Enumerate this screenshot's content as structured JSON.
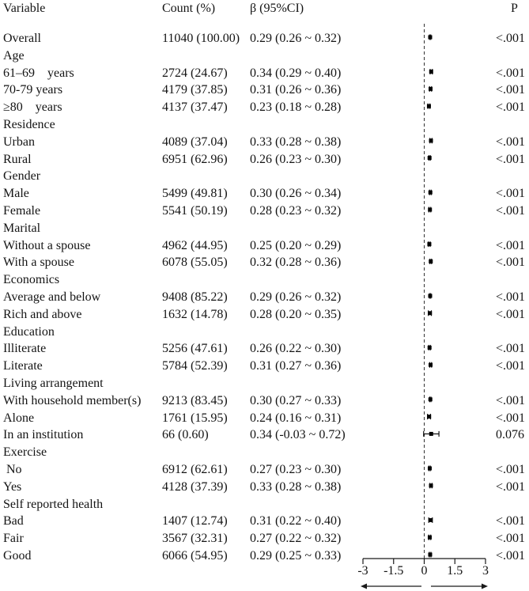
{
  "header": {
    "variable": "Variable",
    "count": "Count (%)",
    "beta": "β (95%CI)",
    "p": "P"
  },
  "colors": {
    "text": "#141414",
    "marker": "#000000",
    "axis": "#1a1a1a",
    "reference_line": "#333333",
    "background": "#ffffff"
  },
  "chart_data": {
    "type": "scatter",
    "subtype": "forest-plot",
    "title": "",
    "xlabel": "",
    "columns": [
      "Variable",
      "Count (%)",
      "β (95%CI)",
      "P"
    ],
    "xlim": [
      -3,
      3
    ],
    "x_ticks": [
      -3,
      -1.5,
      0,
      1.5,
      3
    ],
    "x_tick_labels": [
      "-3",
      "-1.5",
      "0",
      "1.5",
      "3"
    ],
    "reference_line": {
      "x": 0,
      "style": "dashed"
    },
    "axis_arrows": "both-directions",
    "rows": [
      {
        "kind": "data",
        "variable": "Overall",
        "count": "11040 (100.00)",
        "beta_ci": "0.29 (0.26 ~ 0.32)",
        "p": "<.001",
        "estimate": 0.29,
        "ci_low": 0.26,
        "ci_high": 0.32
      },
      {
        "kind": "section",
        "variable": "Age"
      },
      {
        "kind": "data",
        "variable": "61–69    years",
        "count": "2724 (24.67)",
        "beta_ci": "0.34 (0.29 ~ 0.40)",
        "p": "<.001",
        "estimate": 0.34,
        "ci_low": 0.29,
        "ci_high": 0.4
      },
      {
        "kind": "data",
        "variable": "70-79 years",
        "count": "4179 (37.85)",
        "beta_ci": "0.31 (0.26 ~ 0.36)",
        "p": "<.001",
        "estimate": 0.31,
        "ci_low": 0.26,
        "ci_high": 0.36
      },
      {
        "kind": "data",
        "variable": "≥80    years",
        "count": "4137 (37.47)",
        "beta_ci": "0.23 (0.18 ~ 0.28)",
        "p": "<.001",
        "estimate": 0.23,
        "ci_low": 0.18,
        "ci_high": 0.28
      },
      {
        "kind": "section",
        "variable": "Residence"
      },
      {
        "kind": "data",
        "variable": "Urban",
        "count": "4089 (37.04)",
        "beta_ci": "0.33 (0.28 ~ 0.38)",
        "p": "<.001",
        "estimate": 0.33,
        "ci_low": 0.28,
        "ci_high": 0.38
      },
      {
        "kind": "data",
        "variable": "Rural",
        "count": "6951 (62.96)",
        "beta_ci": "0.26 (0.23 ~ 0.30)",
        "p": "<.001",
        "estimate": 0.26,
        "ci_low": 0.23,
        "ci_high": 0.3
      },
      {
        "kind": "section",
        "variable": "Gender"
      },
      {
        "kind": "data",
        "variable": "Male",
        "count": "5499 (49.81)",
        "beta_ci": "0.30 (0.26 ~ 0.34)",
        "p": "<.001",
        "estimate": 0.3,
        "ci_low": 0.26,
        "ci_high": 0.34
      },
      {
        "kind": "data",
        "variable": "Female",
        "count": "5541 (50.19)",
        "beta_ci": "0.28 (0.23 ~ 0.32)",
        "p": "<.001",
        "estimate": 0.28,
        "ci_low": 0.23,
        "ci_high": 0.32
      },
      {
        "kind": "section",
        "variable": "Marital"
      },
      {
        "kind": "data",
        "variable": "Without a spouse",
        "count": "4962 (44.95)",
        "beta_ci": "0.25 (0.20 ~ 0.29)",
        "p": "<.001",
        "estimate": 0.25,
        "ci_low": 0.2,
        "ci_high": 0.29
      },
      {
        "kind": "data",
        "variable": "With a spouse",
        "count": "6078 (55.05)",
        "beta_ci": "0.32 (0.28 ~ 0.36)",
        "p": "<.001",
        "estimate": 0.32,
        "ci_low": 0.28,
        "ci_high": 0.36
      },
      {
        "kind": "section",
        "variable": "Economics"
      },
      {
        "kind": "data",
        "variable": "Average and below",
        "count": "9408 (85.22)",
        "beta_ci": "0.29 (0.26 ~ 0.32)",
        "p": "<.001",
        "estimate": 0.29,
        "ci_low": 0.26,
        "ci_high": 0.32
      },
      {
        "kind": "data",
        "variable": "Rich and above",
        "count": "1632 (14.78)",
        "beta_ci": "0.28 (0.20 ~ 0.35)",
        "p": "<.001",
        "estimate": 0.28,
        "ci_low": 0.2,
        "ci_high": 0.35
      },
      {
        "kind": "section",
        "variable": "Education"
      },
      {
        "kind": "data",
        "variable": "Illiterate",
        "count": "5256 (47.61)",
        "beta_ci": "0.26 (0.22 ~ 0.30)",
        "p": "<.001",
        "estimate": 0.26,
        "ci_low": 0.22,
        "ci_high": 0.3
      },
      {
        "kind": "data",
        "variable": "Literate",
        "count": "5784 (52.39)",
        "beta_ci": "0.31 (0.27 ~ 0.36)",
        "p": "<.001",
        "estimate": 0.31,
        "ci_low": 0.27,
        "ci_high": 0.36
      },
      {
        "kind": "section",
        "variable": "Living arrangement"
      },
      {
        "kind": "data",
        "variable": "With household member(s)",
        "count": "9213 (83.45)",
        "beta_ci": "0.30 (0.27 ~ 0.33)",
        "p": "<.001",
        "estimate": 0.3,
        "ci_low": 0.27,
        "ci_high": 0.33
      },
      {
        "kind": "data",
        "variable": "Alone",
        "count": "1761 (15.95)",
        "beta_ci": "0.24 (0.16 ~ 0.31)",
        "p": "<.001",
        "estimate": 0.24,
        "ci_low": 0.16,
        "ci_high": 0.31
      },
      {
        "kind": "data",
        "variable": "In an institution",
        "count": "66 (0.60)",
        "beta_ci": "0.34 (-0.03 ~ 0.72)",
        "p": "0.076",
        "estimate": 0.34,
        "ci_low": -0.03,
        "ci_high": 0.72
      },
      {
        "kind": "section",
        "variable": "Exercise"
      },
      {
        "kind": "data",
        "variable": " No",
        "count": "6912 (62.61)",
        "beta_ci": "0.27 (0.23 ~ 0.30)",
        "p": "<.001",
        "estimate": 0.27,
        "ci_low": 0.23,
        "ci_high": 0.3
      },
      {
        "kind": "data",
        "variable": "Yes",
        "count": "4128 (37.39)",
        "beta_ci": "0.33 (0.28 ~ 0.38)",
        "p": "<.001",
        "estimate": 0.33,
        "ci_low": 0.28,
        "ci_high": 0.38
      },
      {
        "kind": "section",
        "variable": "Self reported health"
      },
      {
        "kind": "data",
        "variable": "Bad",
        "count": "1407 (12.74)",
        "beta_ci": "0.31 (0.22 ~ 0.40)",
        "p": "<.001",
        "estimate": 0.31,
        "ci_low": 0.22,
        "ci_high": 0.4
      },
      {
        "kind": "data",
        "variable": "Fair",
        "count": "3567 (32.31)",
        "beta_ci": "0.27 (0.22 ~ 0.32)",
        "p": "<.001",
        "estimate": 0.27,
        "ci_low": 0.22,
        "ci_high": 0.32
      },
      {
        "kind": "data",
        "variable": "Good",
        "count": "6066 (54.95)",
        "beta_ci": "0.29 (0.25 ~ 0.33)",
        "p": "<.001",
        "estimate": 0.29,
        "ci_low": 0.25,
        "ci_high": 0.33
      }
    ]
  }
}
